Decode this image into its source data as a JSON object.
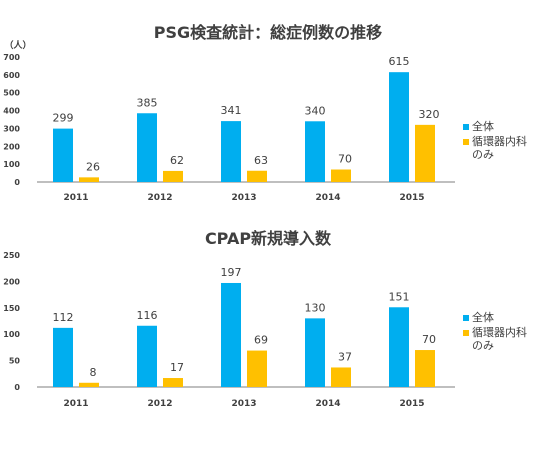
{
  "colors": {
    "series_all": "#00aeef",
    "series_cardio": "#ffc000",
    "axis": "#7f7f7f"
  },
  "chart_data": [
    {
      "type": "bar",
      "title": "PSG検査統計：総症例数の推移",
      "ylabel": "（人）",
      "categories": [
        "2011",
        "2012",
        "2013",
        "2014",
        "2015"
      ],
      "ylim": [
        0,
        700
      ],
      "yticks": [
        "0",
        "100",
        "200",
        "300",
        "400",
        "500",
        "600",
        "700"
      ],
      "grid": false,
      "legend": "right",
      "series": [
        {
          "name": "全体",
          "values": [
            299,
            385,
            341,
            340,
            615
          ]
        },
        {
          "name": "循環器内科のみ",
          "values": [
            26,
            62,
            63,
            70,
            320
          ]
        }
      ],
      "legend_labels": [
        "全体",
        "循環器内科",
        "のみ"
      ],
      "data_labels": [
        [
          "299",
          "385",
          "341",
          "340",
          "615"
        ],
        [
          "26",
          "62",
          "63",
          "70",
          "320"
        ]
      ]
    },
    {
      "type": "bar",
      "title": "CPAP新規導入数",
      "ylabel": "",
      "categories": [
        "2011",
        "2012",
        "2013",
        "2014",
        "2015"
      ],
      "ylim": [
        0,
        250
      ],
      "yticks": [
        "0",
        "50",
        "100",
        "150",
        "200",
        "250"
      ],
      "grid": false,
      "legend": "right",
      "series": [
        {
          "name": "全体",
          "values": [
            112,
            116,
            197,
            130,
            151
          ]
        },
        {
          "name": "循環器内科のみ",
          "values": [
            8,
            17,
            69,
            37,
            70
          ]
        }
      ],
      "legend_labels": [
        "全体",
        "循環器内科",
        "のみ"
      ],
      "data_labels": [
        [
          "112",
          "116",
          "197",
          "130",
          "151"
        ],
        [
          "8",
          "17",
          "69",
          "37",
          "70"
        ]
      ]
    }
  ]
}
